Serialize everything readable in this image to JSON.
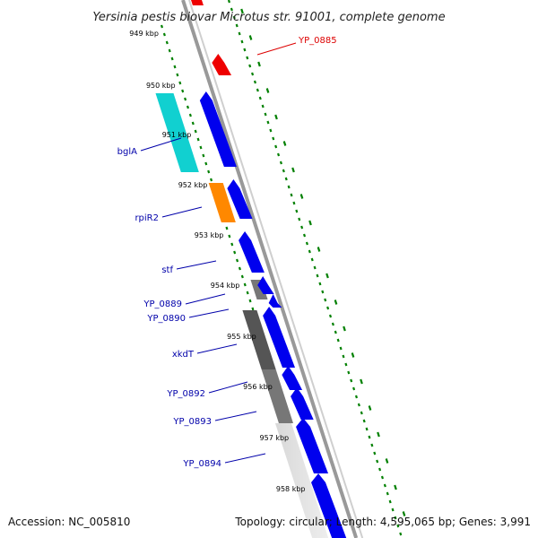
{
  "title": "Yersinia pestis biovar Microtus str. 91001, complete genome",
  "footer": {
    "accession": "Accession: NC_005810",
    "topology": "Topology: circular; Length: 4,595,065 bp; Genes: 3,991"
  },
  "colors": {
    "forward_cds": "#0000ee",
    "forward_cds_side": "#0000a0",
    "highlight_gene": "#ee0000",
    "ruler_dots": "#008000",
    "backbone": "#888888",
    "label_blue": "#0000aa",
    "label_red": "#dd0000",
    "cyan": "#11d0d0",
    "orange": "#ff8800",
    "gray_dark": "#555555",
    "gray_mid": "#777777",
    "gray_light": "#cccccc"
  },
  "kbp_labels": [
    "949 kbp",
    "950 kbp",
    "951 kbp",
    "952 kbp",
    "953 kbp",
    "954 kbp",
    "955 kbp",
    "956 kbp",
    "957 kbp",
    "958 kbp"
  ],
  "gene_labels": [
    {
      "text": "YP_0885",
      "color": "red"
    },
    {
      "text": "bglA",
      "color": "blue"
    },
    {
      "text": "rpiR2",
      "color": "blue"
    },
    {
      "text": "stf",
      "color": "blue"
    },
    {
      "text": "YP_0889",
      "color": "blue"
    },
    {
      "text": "YP_0890",
      "color": "blue"
    },
    {
      "text": "xkdT",
      "color": "blue"
    },
    {
      "text": "YP_0892",
      "color": "blue"
    },
    {
      "text": "YP_0893",
      "color": "blue"
    },
    {
      "text": "YP_0894",
      "color": "blue"
    }
  ]
}
